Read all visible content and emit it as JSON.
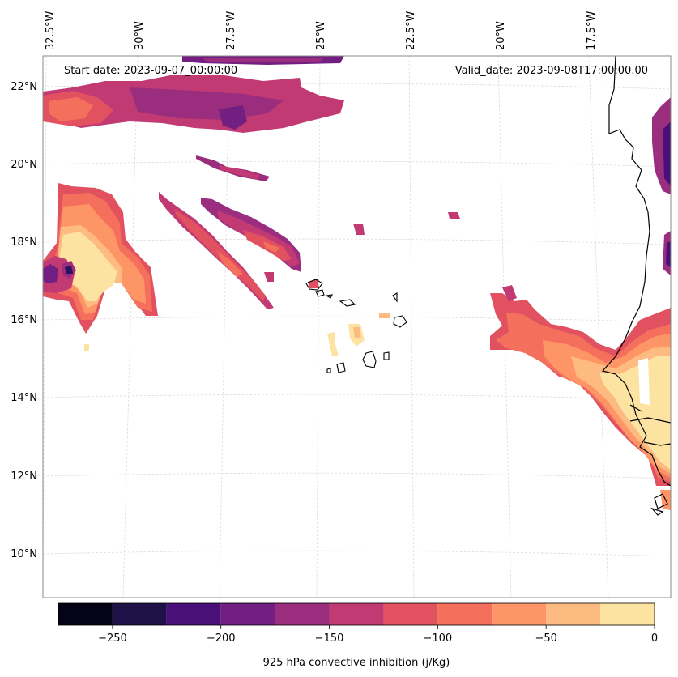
{
  "header": {
    "start_date": "Start date: 2023-09-07_00:00:00",
    "valid_date": "Valid_date: 2023-09-08T17:00:00.00"
  },
  "longitude_labels": [
    "32.5°W",
    "30°W",
    "27.5°W",
    "25°W",
    "22.5°W",
    "20°W",
    "17.5°W"
  ],
  "latitude_labels": [
    "22°N",
    "20°N",
    "18°N",
    "16°N",
    "14°N",
    "12°N",
    "10°N"
  ],
  "colorbar": {
    "title": "925 hPa convective inhibition (j/Kg)",
    "tick_labels": [
      "−250",
      "−200",
      "−150",
      "−100",
      "−50",
      "0"
    ],
    "levels": [
      -275,
      -250,
      -225,
      -200,
      -175,
      -150,
      -125,
      -100,
      -75,
      -50,
      -25,
      0
    ],
    "colors": [
      "#050416",
      "#1d1147",
      "#4a1079",
      "#721f81",
      "#9b2d7f",
      "#c13a73",
      "#e1515f",
      "#f4705c",
      "#fd9567",
      "#febb81",
      "#fde3a1"
    ]
  },
  "colors": {
    "coastline": "#000000",
    "gridline": "#dddddd",
    "frame": "#888888"
  }
}
